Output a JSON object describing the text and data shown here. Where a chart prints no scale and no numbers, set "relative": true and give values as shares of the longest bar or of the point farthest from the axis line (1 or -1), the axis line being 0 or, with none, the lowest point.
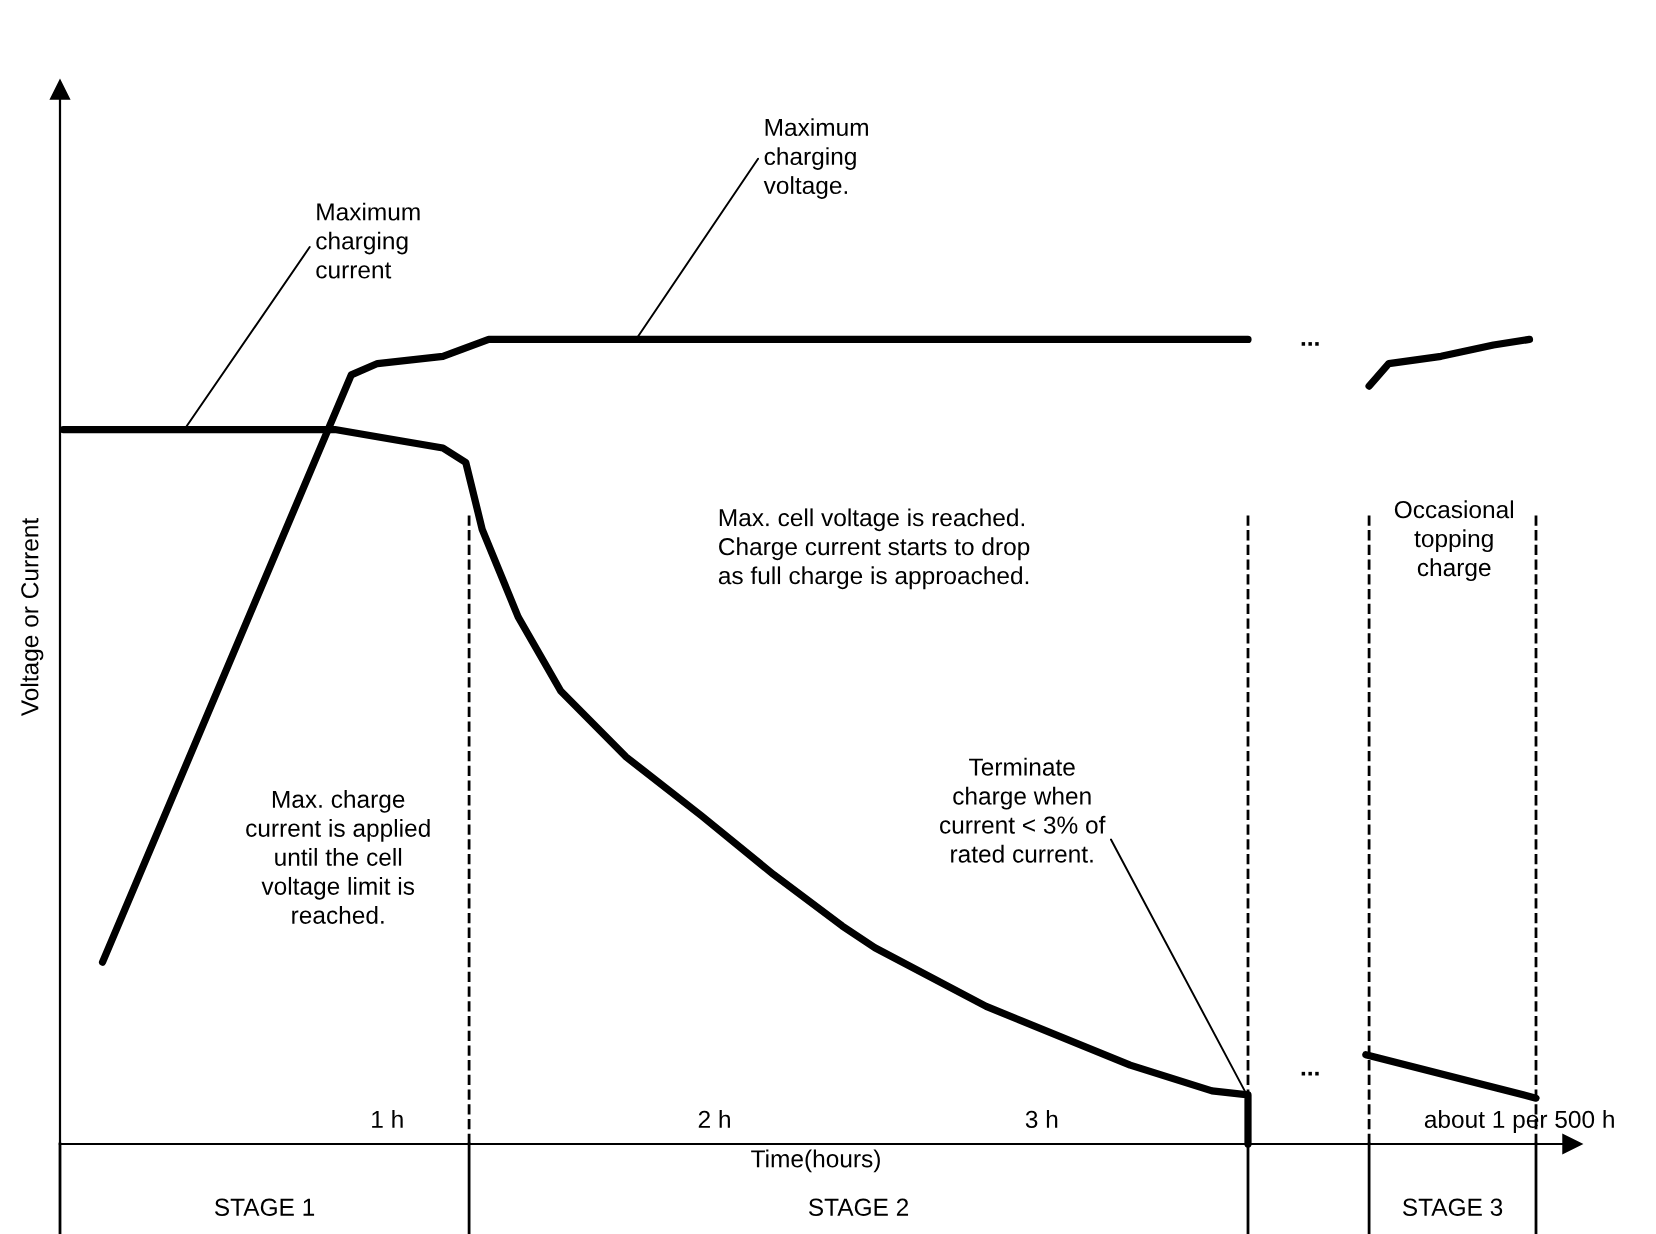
{
  "chart_data": {
    "type": "line",
    "relative": true,
    "xlabel": "Time(hours)",
    "ylabel": "Voltage or Current",
    "xlim": [
      0,
      4.62
    ],
    "xticks": [
      {
        "value": 1,
        "label": "1 h"
      },
      {
        "value": 2,
        "label": "2 h"
      },
      {
        "value": 3,
        "label": "3 h"
      },
      {
        "value": 4.46,
        "label": "about 1 per 500 h"
      }
    ],
    "series": [
      {
        "color": "#000000",
        "x": [
          0.13,
          0.89,
          0.97,
          1.17,
          1.31,
          3.63,
          3.82,
          4.0,
          4.06,
          4.22,
          4.38,
          4.49
        ],
        "values": [
          0.226,
          0.956,
          0.97,
          0.979,
          1.0,
          1.0,
          null,
          0.942,
          0.97,
          0.979,
          0.993,
          1.0
        ]
      },
      {
        "color": "#000000",
        "x": [
          0.01,
          0.84,
          1.04,
          1.17,
          1.24,
          1.29,
          1.4,
          1.53,
          1.73,
          1.96,
          2.18,
          2.39,
          2.49,
          2.83,
          3.27,
          3.52,
          3.63,
          3.63,
          3.82,
          3.99,
          4.51
        ],
        "values": [
          0.888,
          0.888,
          0.874,
          0.865,
          0.847,
          0.764,
          0.655,
          0.563,
          0.481,
          0.408,
          0.335,
          0.271,
          0.244,
          0.171,
          0.098,
          0.066,
          0.061,
          0,
          null,
          0.111,
          0.057
        ]
      }
    ],
    "line_style": "solid",
    "ref_lines": [
      {
        "axis": "x",
        "value": 1.25,
        "line_style": "dashed"
      },
      {
        "axis": "x",
        "value": 3.63,
        "line_style": "dashed"
      },
      {
        "axis": "x",
        "value": 4.0,
        "line_style": "dashed"
      },
      {
        "axis": "x",
        "value": 4.51,
        "line_style": "dashed"
      }
    ],
    "annotations": [
      {
        "text": "Maximum\ncharging\ncurrent",
        "x": 0.38,
        "y": 0.888
      },
      {
        "text": "Maximum\ncharging\nvoltage.",
        "x": 1.76,
        "y": 1.0
      },
      {
        "text": "Terminate\ncharge when\ncurrent < 3% of\nrated current.",
        "x": 3.62,
        "y": 0.066
      },
      "Max. charge\ncurrent is applied\nuntil the cell\nvoltage limit is\nreached.",
      "Max. cell voltage is reached.\nCharge current starts to drop\nas full charge is approached.",
      "Occasional\ntopping\ncharge",
      "...",
      "...",
      "STAGE 1",
      "STAGE 2",
      "STAGE 3"
    ]
  }
}
